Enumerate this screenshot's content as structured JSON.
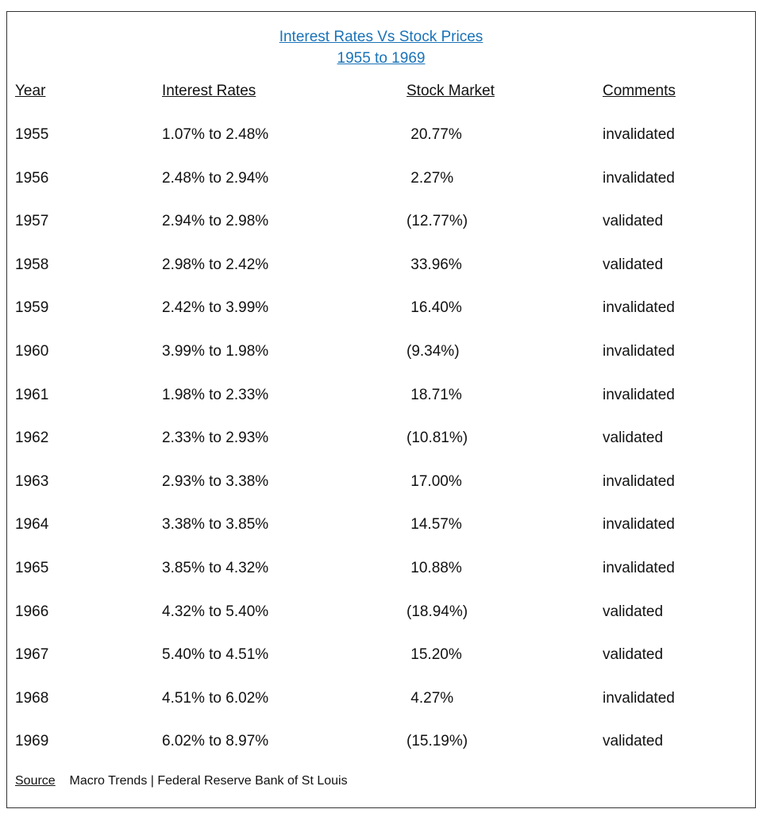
{
  "title_line1": "Interest Rates Vs Stock Prices",
  "title_line2": "1955 to 1969",
  "headers": {
    "year": "Year",
    "interest": "Interest Rates",
    "stock": "Stock Market",
    "comments": "Comments"
  },
  "rows": [
    {
      "year": "1955",
      "rates": "1.07% to 2.48%",
      "stock": " 20.77%",
      "comment": "invalidated"
    },
    {
      "year": "1956",
      "rates": "2.48% to 2.94%",
      "stock": " 2.27%",
      "comment": "invalidated"
    },
    {
      "year": "1957",
      "rates": "2.94% to 2.98%",
      "stock": "(12.77%)",
      "comment": "validated"
    },
    {
      "year": "1958",
      "rates": "2.98% to 2.42%",
      "stock": " 33.96%",
      "comment": "validated"
    },
    {
      "year": "1959",
      "rates": "2.42% to 3.99%",
      "stock": " 16.40%",
      "comment": "invalidated"
    },
    {
      "year": "1960",
      "rates": "3.99% to 1.98%",
      "stock": "(9.34%)",
      "comment": "invalidated"
    },
    {
      "year": "1961",
      "rates": "1.98% to 2.33%",
      "stock": " 18.71%",
      "comment": "invalidated"
    },
    {
      "year": "1962",
      "rates": "2.33% to 2.93%",
      "stock": "(10.81%)",
      "comment": "validated"
    },
    {
      "year": "1963",
      "rates": "2.93% to 3.38%",
      "stock": " 17.00%",
      "comment": "invalidated"
    },
    {
      "year": "1964",
      "rates": "3.38% to 3.85%",
      "stock": " 14.57%",
      "comment": "invalidated"
    },
    {
      "year": "1965",
      "rates": "3.85% to 4.32%",
      "stock": " 10.88%",
      "comment": "invalidated"
    },
    {
      "year": "1966",
      "rates": "4.32% to 5.40%",
      "stock": "(18.94%)",
      "comment": "validated"
    },
    {
      "year": "1967",
      "rates": "5.40% to 4.51%",
      "stock": " 15.20%",
      "comment": "validated"
    },
    {
      "year": "1968",
      "rates": "4.51% to 6.02%",
      "stock": " 4.27%",
      "comment": "invalidated"
    },
    {
      "year": "1969",
      "rates": "6.02% to 8.97%",
      "stock": "(15.19%)",
      "comment": "validated"
    }
  ],
  "source": {
    "label": "Source",
    "text": "Macro Trends | Federal Reserve Bank of St Louis"
  },
  "colors": {
    "title": "#1a73b8",
    "border": "#333333",
    "text": "#111111"
  }
}
